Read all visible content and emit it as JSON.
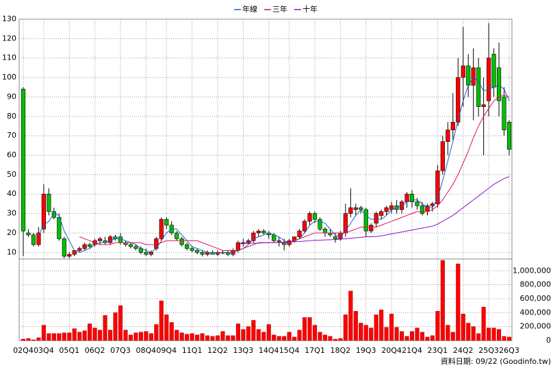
{
  "chart_data": {
    "type": "candlestick",
    "categories": [
      "02Q4",
      null,
      null,
      null,
      "03Q4",
      null,
      null,
      null,
      null,
      "05Q1",
      null,
      null,
      null,
      null,
      "06Q2",
      null,
      null,
      null,
      null,
      "07Q3",
      null,
      null,
      null,
      null,
      "08Q4",
      null,
      null,
      null,
      "09Q4",
      null,
      null,
      null,
      null,
      "11Q1",
      null,
      null,
      null,
      null,
      "12Q2",
      null,
      null,
      null,
      null,
      "13Q3",
      null,
      null,
      null,
      null,
      "14Q4",
      null,
      null,
      null,
      "15Q4",
      null,
      null,
      null,
      null,
      "17Q1",
      null,
      null,
      null,
      null,
      "18Q2",
      null,
      null,
      null,
      null,
      "19Q3",
      null,
      null,
      null,
      null,
      "20Q4",
      null,
      null,
      null,
      "21Q4",
      null,
      null,
      null,
      null,
      "23Q1",
      null,
      null,
      null,
      null,
      "24Q2",
      null,
      null,
      null,
      null,
      "25Q3",
      null,
      null,
      null,
      "26Q3"
    ],
    "open": [
      94,
      20,
      19,
      14,
      22,
      40,
      31,
      28,
      17,
      8,
      9,
      11,
      12,
      14,
      14,
      16,
      16,
      15,
      18,
      18,
      15,
      14,
      13,
      12,
      10,
      9,
      12,
      17,
      27,
      24,
      20,
      17,
      14,
      12,
      11,
      10,
      9,
      10,
      9,
      10,
      10,
      9,
      11,
      15,
      15,
      16,
      20,
      21,
      20,
      19,
      16,
      15,
      14,
      16,
      18,
      21,
      26,
      30,
      27,
      22,
      20,
      18,
      17,
      20,
      30,
      32,
      33,
      32,
      21,
      25,
      29,
      31,
      32,
      34,
      32,
      36,
      40,
      36,
      34,
      31,
      34,
      35,
      52,
      67,
      73,
      77,
      100,
      106,
      96,
      105,
      85,
      88,
      112,
      105,
      90,
      77
    ],
    "high": [
      95,
      22,
      20,
      23,
      45,
      43,
      33,
      30,
      18,
      10,
      11,
      13,
      15,
      15,
      17,
      18,
      18,
      19,
      19,
      20,
      16,
      15,
      14,
      13,
      12,
      11,
      18,
      28,
      28,
      26,
      21,
      18,
      15,
      13,
      12,
      11,
      11,
      11,
      11,
      11,
      11,
      12,
      16,
      17,
      17,
      21,
      22,
      22,
      21,
      20,
      18,
      17,
      17,
      18,
      22,
      27,
      31,
      31,
      28,
      23,
      22,
      20,
      21,
      35,
      43,
      35,
      34,
      33,
      25,
      31,
      32,
      34,
      36,
      37,
      37,
      41,
      42,
      38,
      36,
      35,
      36,
      55,
      70,
      77,
      92,
      110,
      126,
      112,
      115,
      110,
      100,
      128,
      115,
      118,
      95,
      78
    ],
    "low": [
      8,
      18,
      13,
      13,
      20,
      29,
      27,
      16,
      7,
      7,
      8,
      10,
      11,
      12,
      13,
      14,
      14,
      14,
      16,
      14,
      13,
      12,
      11,
      9,
      8,
      8,
      11,
      16,
      22,
      19,
      16,
      13,
      11,
      10,
      9,
      8,
      8,
      9,
      8,
      9,
      8,
      8,
      10,
      13,
      14,
      15,
      18,
      19,
      17,
      15,
      13,
      11,
      13,
      15,
      17,
      20,
      24,
      25,
      21,
      18,
      18,
      15,
      16,
      18,
      28,
      29,
      30,
      18,
      20,
      23,
      27,
      29,
      30,
      30,
      30,
      33,
      33,
      32,
      29,
      29,
      31,
      33,
      50,
      60,
      68,
      75,
      85,
      90,
      78,
      80,
      60,
      80,
      90,
      80,
      70,
      60
    ],
    "close": [
      21,
      19,
      14,
      20,
      40,
      31,
      28,
      17,
      8,
      9,
      11,
      12,
      14,
      13,
      16,
      17,
      15,
      18,
      17,
      15,
      14,
      13,
      12,
      10,
      9,
      10,
      17,
      27,
      24,
      20,
      17,
      14,
      12,
      11,
      10,
      9,
      10,
      9,
      10,
      10,
      9,
      11,
      15,
      15,
      16,
      20,
      21,
      20,
      19,
      16,
      16,
      14,
      16,
      18,
      21,
      26,
      30,
      27,
      22,
      20,
      19,
      17,
      20,
      30,
      33,
      33,
      32,
      21,
      24,
      30,
      31,
      33,
      34,
      32,
      36,
      40,
      36,
      34,
      30,
      34,
      35,
      52,
      67,
      73,
      77,
      100,
      106,
      96,
      105,
      85,
      86,
      110,
      95,
      88,
      73,
      63
    ],
    "up_color": "#ff0000",
    "down_color": "#00c000",
    "series": [
      {
        "name": "年線",
        "color": "#1a5fc8",
        "values": [
          null,
          null,
          null,
          19,
          24,
          26,
          30,
          29,
          21,
          16,
          11,
          10,
          11,
          12,
          14,
          15,
          15,
          16,
          17,
          17,
          16,
          15,
          14,
          12,
          11,
          10,
          12,
          16,
          20,
          22,
          22,
          19,
          16,
          13,
          12,
          11,
          10,
          10,
          10,
          10,
          10,
          10,
          11,
          12,
          14,
          17,
          18,
          19,
          20,
          19,
          18,
          16,
          15,
          16,
          17,
          20,
          24,
          26,
          26,
          25,
          22,
          19,
          18,
          21,
          25,
          29,
          32,
          29,
          27,
          27,
          27,
          29,
          32,
          33,
          34,
          36,
          37,
          37,
          35,
          33,
          33,
          38,
          47,
          57,
          67,
          78,
          88,
          96,
          100,
          98,
          93,
          94,
          95,
          96,
          94,
          88
        ]
      },
      {
        "name": "三年",
        "color": "#e0105a",
        "values": [
          null,
          null,
          null,
          null,
          null,
          null,
          null,
          null,
          null,
          null,
          null,
          18,
          17,
          16,
          15,
          14,
          14,
          14,
          15,
          15,
          15,
          15,
          15,
          15,
          14,
          14,
          14,
          15,
          16,
          16,
          16,
          16,
          16,
          16,
          16,
          15,
          14,
          13,
          12,
          11,
          11,
          11,
          11,
          12,
          13,
          14,
          15,
          15,
          15,
          15,
          15,
          15,
          15,
          16,
          17,
          18,
          19,
          20,
          20,
          20,
          20,
          20,
          20,
          20,
          21,
          22,
          23,
          23,
          23,
          23,
          24,
          25,
          26,
          27,
          28,
          29,
          30,
          31,
          31,
          31,
          32,
          34,
          37,
          41,
          45,
          50,
          56,
          62,
          69,
          75,
          80,
          84,
          88,
          90,
          91,
          90
        ]
      },
      {
        "name": "十年",
        "color": "#8a10c8",
        "values": [
          null,
          null,
          null,
          null,
          null,
          null,
          null,
          null,
          null,
          null,
          null,
          null,
          null,
          null,
          null,
          null,
          null,
          null,
          null,
          null,
          null,
          null,
          null,
          null,
          null,
          null,
          null,
          null,
          null,
          null,
          null,
          null,
          null,
          null,
          null,
          null,
          null,
          null,
          null,
          null,
          null,
          null,
          14.5,
          14.5,
          14.6,
          14.7,
          14.8,
          14.9,
          15,
          15,
          15.2,
          15.3,
          15.4,
          15.5,
          15.6,
          15.8,
          16,
          16.2,
          16.3,
          16.4,
          16.5,
          16.6,
          16.8,
          17,
          17.3,
          17.5,
          17.8,
          18,
          18,
          18.2,
          18.5,
          19,
          19.5,
          20,
          20.5,
          21,
          21.5,
          22,
          22.5,
          23,
          23.5,
          24.5,
          26,
          27.5,
          29,
          31,
          33,
          35,
          37,
          39,
          41,
          43,
          45,
          46.5,
          48,
          49
        ]
      }
    ],
    "ylim": [
      8,
      130
    ],
    "yticks": [
      10,
      20,
      30,
      40,
      50,
      60,
      70,
      80,
      90,
      100,
      110,
      120,
      130
    ],
    "grid": true,
    "legend": "top",
    "volume": {
      "color": "#ff0000",
      "values": [
        20000,
        30000,
        10000,
        40000,
        220000,
        100000,
        100000,
        100000,
        110000,
        110000,
        170000,
        120000,
        140000,
        240000,
        180000,
        150000,
        360000,
        150000,
        400000,
        500000,
        150000,
        80000,
        110000,
        120000,
        130000,
        100000,
        230000,
        570000,
        370000,
        260000,
        150000,
        110000,
        90000,
        100000,
        80000,
        100000,
        70000,
        60000,
        70000,
        130000,
        70000,
        70000,
        240000,
        160000,
        200000,
        290000,
        160000,
        120000,
        230000,
        80000,
        60000,
        60000,
        120000,
        50000,
        150000,
        330000,
        330000,
        220000,
        120000,
        80000,
        60000,
        20000,
        30000,
        370000,
        710000,
        420000,
        250000,
        220000,
        180000,
        370000,
        440000,
        190000,
        380000,
        190000,
        130000,
        60000,
        130000,
        180000,
        120000,
        50000,
        70000,
        420000,
        1150000,
        220000,
        120000,
        1100000,
        380000,
        250000,
        200000,
        100000,
        480000,
        180000,
        180000,
        160000,
        60000,
        50000
      ],
      "ylim": [
        0,
        1150000
      ],
      "yticks": [
        0,
        {
          "value": 200000,
          "label": "200,000"
        },
        {
          "value": 400000,
          "label": "400,000"
        },
        {
          "value": 600000,
          "label": "600,000"
        },
        {
          "value": 800000,
          "label": "800,000"
        },
        {
          "value": 1000000,
          "label": "1,000,000"
        }
      ]
    }
  },
  "footer": "資料日期: 09/22 (Goodinfo.tw)"
}
